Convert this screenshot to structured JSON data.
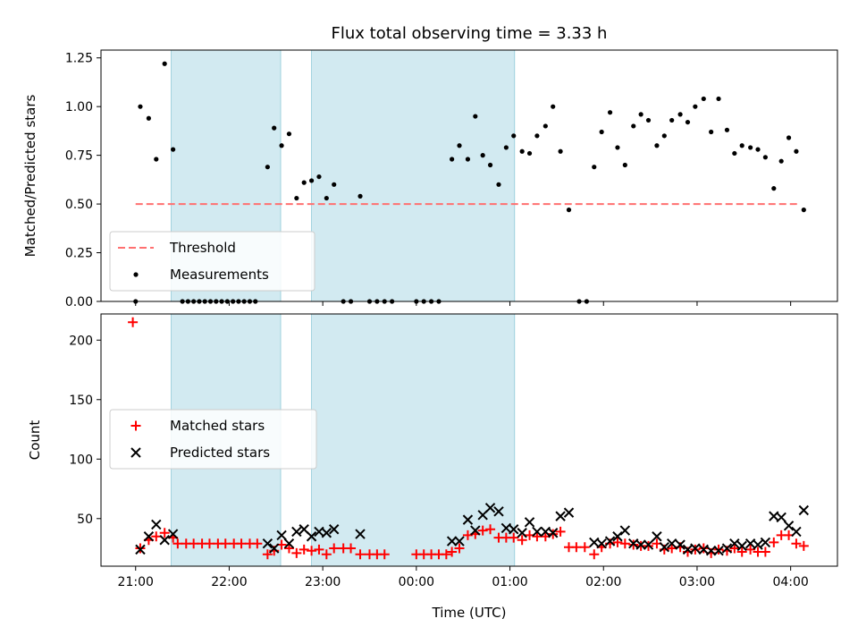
{
  "chart_data": {
    "title": "Flux total observing time = 3.33 h",
    "xlabel": "Time (UTC)",
    "x_units": "hours since 21:00 UTC",
    "x_tick_labels": [
      "21:00",
      "22:00",
      "23:00",
      "00:00",
      "01:00",
      "02:00",
      "03:00",
      "04:00"
    ],
    "x_tick_values": [
      0,
      1,
      2,
      3,
      4,
      5,
      6,
      7
    ],
    "xlim": [
      -0.37,
      7.5
    ],
    "shaded_intervals": [
      [
        0.38,
        1.55
      ],
      [
        1.88,
        4.05
      ]
    ],
    "shade_color": "#add8e6",
    "panels": [
      {
        "type": "scatter",
        "ylabel": "Matched/Predicted stars",
        "ylim": [
          0,
          1.29
        ],
        "y_ticks": [
          "0.00",
          "0.25",
          "0.50",
          "0.75",
          "1.00",
          "1.25"
        ],
        "y_tick_values": [
          0,
          0.25,
          0.5,
          0.75,
          1.0,
          1.25
        ],
        "legend_position": "lower-left",
        "threshold": {
          "name": "Threshold",
          "value": 0.5,
          "x_range": [
            0,
            7.1
          ],
          "color": "#ff7070"
        },
        "series": [
          {
            "name": "Measurements",
            "color": "#000000",
            "points": [
              [
                0,
                0
              ],
              [
                0.05,
                1.0
              ],
              [
                0.14,
                0.94
              ],
              [
                0.22,
                0.73
              ],
              [
                0.31,
                1.22
              ],
              [
                0.4,
                0.78
              ],
              [
                0.5,
                0
              ],
              [
                0.56,
                0
              ],
              [
                0.62,
                0
              ],
              [
                0.68,
                0
              ],
              [
                0.74,
                0
              ],
              [
                0.8,
                0
              ],
              [
                0.86,
                0
              ],
              [
                0.92,
                0
              ],
              [
                0.98,
                0
              ],
              [
                1.04,
                0
              ],
              [
                1.1,
                0
              ],
              [
                1.16,
                0
              ],
              [
                1.22,
                0
              ],
              [
                1.28,
                0
              ],
              [
                1.41,
                0.69
              ],
              [
                1.48,
                0.89
              ],
              [
                1.56,
                0.8
              ],
              [
                1.64,
                0.86
              ],
              [
                1.72,
                0.53
              ],
              [
                1.8,
                0.61
              ],
              [
                1.88,
                0.62
              ],
              [
                1.96,
                0.64
              ],
              [
                2.04,
                0.53
              ],
              [
                2.12,
                0.6
              ],
              [
                2.22,
                0
              ],
              [
                2.3,
                0
              ],
              [
                2.4,
                0.54
              ],
              [
                2.5,
                0
              ],
              [
                2.58,
                0
              ],
              [
                2.66,
                0
              ],
              [
                2.74,
                0
              ],
              [
                3.0,
                0
              ],
              [
                3.08,
                0
              ],
              [
                3.16,
                0
              ],
              [
                3.24,
                0
              ],
              [
                3.38,
                0.73
              ],
              [
                3.46,
                0.8
              ],
              [
                3.55,
                0.73
              ],
              [
                3.63,
                0.95
              ],
              [
                3.71,
                0.75
              ],
              [
                3.79,
                0.7
              ],
              [
                3.88,
                0.6
              ],
              [
                3.96,
                0.79
              ],
              [
                4.04,
                0.85
              ],
              [
                4.13,
                0.77
              ],
              [
                4.21,
                0.76
              ],
              [
                4.29,
                0.85
              ],
              [
                4.38,
                0.9
              ],
              [
                4.46,
                1.0
              ],
              [
                4.54,
                0.77
              ],
              [
                4.63,
                0.47
              ],
              [
                4.74,
                0
              ],
              [
                4.82,
                0
              ],
              [
                4.9,
                0.69
              ],
              [
                4.98,
                0.87
              ],
              [
                5.07,
                0.97
              ],
              [
                5.15,
                0.79
              ],
              [
                5.23,
                0.7
              ],
              [
                5.32,
                0.9
              ],
              [
                5.4,
                0.96
              ],
              [
                5.48,
                0.93
              ],
              [
                5.57,
                0.8
              ],
              [
                5.65,
                0.85
              ],
              [
                5.73,
                0.93
              ],
              [
                5.82,
                0.96
              ],
              [
                5.9,
                0.92
              ],
              [
                5.98,
                1.0
              ],
              [
                6.07,
                1.04
              ],
              [
                6.15,
                0.87
              ],
              [
                6.23,
                1.04
              ],
              [
                6.32,
                0.88
              ],
              [
                6.4,
                0.76
              ],
              [
                6.48,
                0.8
              ],
              [
                6.57,
                0.79
              ],
              [
                6.65,
                0.78
              ],
              [
                6.73,
                0.74
              ],
              [
                6.82,
                0.58
              ],
              [
                6.9,
                0.72
              ],
              [
                6.98,
                0.84
              ],
              [
                7.06,
                0.77
              ],
              [
                7.14,
                0.47
              ]
            ]
          }
        ]
      },
      {
        "type": "scatter",
        "ylabel": "Count",
        "ylim": [
          10,
          222
        ],
        "y_ticks": [
          "50",
          "100",
          "150",
          "200"
        ],
        "y_tick_values": [
          50,
          100,
          150,
          200
        ],
        "legend_position": "center-left",
        "series": [
          {
            "name": "Matched stars",
            "marker": "plus",
            "color": "#ff0000",
            "points": [
              [
                -0.03,
                215
              ],
              [
                0.05,
                25
              ],
              [
                0.14,
                32
              ],
              [
                0.22,
                35
              ],
              [
                0.31,
                38
              ],
              [
                0.4,
                34
              ],
              [
                0.45,
                29
              ],
              [
                0.54,
                29
              ],
              [
                0.62,
                29
              ],
              [
                0.71,
                29
              ],
              [
                0.79,
                29
              ],
              [
                0.88,
                29
              ],
              [
                0.96,
                29
              ],
              [
                1.05,
                29
              ],
              [
                1.13,
                29
              ],
              [
                1.22,
                29
              ],
              [
                1.3,
                29
              ],
              [
                1.41,
                20
              ],
              [
                1.48,
                23
              ],
              [
                1.56,
                28
              ],
              [
                1.64,
                25
              ],
              [
                1.72,
                21
              ],
              [
                1.8,
                24
              ],
              [
                1.88,
                23
              ],
              [
                1.96,
                24
              ],
              [
                2.04,
                20
              ],
              [
                2.12,
                25
              ],
              [
                2.22,
                25
              ],
              [
                2.3,
                25
              ],
              [
                2.4,
                20
              ],
              [
                2.5,
                20
              ],
              [
                2.58,
                20
              ],
              [
                2.66,
                20
              ],
              [
                3.0,
                20
              ],
              [
                3.08,
                20
              ],
              [
                3.16,
                20
              ],
              [
                3.24,
                20
              ],
              [
                3.32,
                20
              ],
              [
                3.38,
                22
              ],
              [
                3.46,
                25
              ],
              [
                3.55,
                36
              ],
              [
                3.63,
                37
              ],
              [
                3.71,
                40
              ],
              [
                3.79,
                41
              ],
              [
                3.88,
                34
              ],
              [
                3.96,
                34
              ],
              [
                4.04,
                34
              ],
              [
                4.13,
                32
              ],
              [
                4.21,
                36
              ],
              [
                4.29,
                35
              ],
              [
                4.38,
                35
              ],
              [
                4.46,
                37
              ],
              [
                4.54,
                39
              ],
              [
                4.63,
                26
              ],
              [
                4.71,
                26
              ],
              [
                4.8,
                26
              ],
              [
                4.9,
                20
              ],
              [
                4.98,
                26
              ],
              [
                5.07,
                29
              ],
              [
                5.15,
                30
              ],
              [
                5.23,
                29
              ],
              [
                5.32,
                28
              ],
              [
                5.4,
                27
              ],
              [
                5.48,
                27
              ],
              [
                5.57,
                29
              ],
              [
                5.65,
                24
              ],
              [
                5.73,
                25
              ],
              [
                5.82,
                26
              ],
              [
                5.9,
                22
              ],
              [
                5.98,
                24
              ],
              [
                6.07,
                25
              ],
              [
                6.15,
                21
              ],
              [
                6.23,
                24
              ],
              [
                6.32,
                23
              ],
              [
                6.4,
                25
              ],
              [
                6.48,
                22
              ],
              [
                6.57,
                24
              ],
              [
                6.65,
                22
              ],
              [
                6.73,
                22
              ],
              [
                6.82,
                30
              ],
              [
                6.9,
                36
              ],
              [
                6.98,
                36
              ],
              [
                7.06,
                29
              ],
              [
                7.14,
                27
              ]
            ]
          },
          {
            "name": "Predicted stars",
            "marker": "x",
            "color": "#000000",
            "points": [
              [
                0.05,
                24
              ],
              [
                0.14,
                35
              ],
              [
                0.22,
                45
              ],
              [
                0.31,
                32
              ],
              [
                0.4,
                37
              ],
              [
                1.41,
                29
              ],
              [
                1.48,
                25
              ],
              [
                1.56,
                36
              ],
              [
                1.64,
                29
              ],
              [
                1.72,
                39
              ],
              [
                1.8,
                41
              ],
              [
                1.88,
                35
              ],
              [
                1.96,
                39
              ],
              [
                2.04,
                38
              ],
              [
                2.12,
                41
              ],
              [
                2.4,
                37
              ],
              [
                3.38,
                31
              ],
              [
                3.46,
                31
              ],
              [
                3.55,
                49
              ],
              [
                3.63,
                40
              ],
              [
                3.71,
                53
              ],
              [
                3.79,
                59
              ],
              [
                3.88,
                56
              ],
              [
                3.96,
                42
              ],
              [
                4.04,
                41
              ],
              [
                4.13,
                38
              ],
              [
                4.21,
                47
              ],
              [
                4.29,
                39
              ],
              [
                4.38,
                39
              ],
              [
                4.46,
                38
              ],
              [
                4.54,
                52
              ],
              [
                4.63,
                55
              ],
              [
                4.9,
                30
              ],
              [
                4.98,
                29
              ],
              [
                5.07,
                31
              ],
              [
                5.15,
                35
              ],
              [
                5.23,
                40
              ],
              [
                5.32,
                29
              ],
              [
                5.4,
                28
              ],
              [
                5.48,
                28
              ],
              [
                5.57,
                35
              ],
              [
                5.65,
                26
              ],
              [
                5.73,
                29
              ],
              [
                5.82,
                28
              ],
              [
                5.9,
                24
              ],
              [
                5.98,
                25
              ],
              [
                6.07,
                24
              ],
              [
                6.15,
                23
              ],
              [
                6.23,
                23
              ],
              [
                6.32,
                25
              ],
              [
                6.4,
                29
              ],
              [
                6.48,
                27
              ],
              [
                6.57,
                29
              ],
              [
                6.65,
                28
              ],
              [
                6.73,
                30
              ],
              [
                6.82,
                52
              ],
              [
                6.9,
                51
              ],
              [
                6.98,
                44
              ],
              [
                7.06,
                39
              ],
              [
                7.14,
                57
              ]
            ]
          }
        ]
      }
    ]
  }
}
